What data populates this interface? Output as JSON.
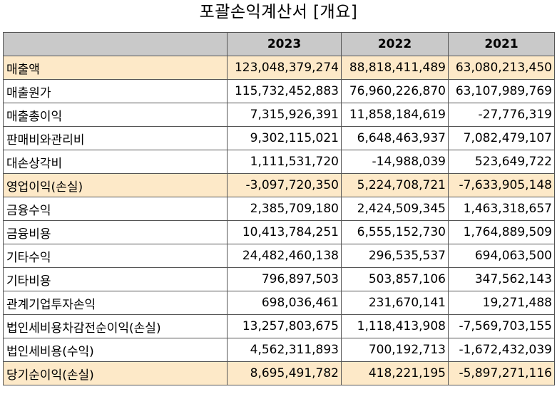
{
  "title": "포괄손익계산서 [개요]",
  "header": {
    "label": "",
    "years": [
      "2023",
      "2022",
      "2021"
    ]
  },
  "rows": [
    {
      "label": "매출액",
      "values": [
        "123,048,379,274",
        "88,818,411,489",
        "63,080,213,450"
      ],
      "highlight": true
    },
    {
      "label": "매출원가",
      "values": [
        "115,732,452,883",
        "76,960,226,870",
        "63,107,989,769"
      ],
      "highlight": false
    },
    {
      "label": "매출총이익",
      "values": [
        "7,315,926,391",
        "11,858,184,619",
        "-27,776,319"
      ],
      "highlight": false
    },
    {
      "label": "판매비와관리비",
      "values": [
        "9,302,115,021",
        "6,648,463,937",
        "7,082,479,107"
      ],
      "highlight": false
    },
    {
      "label": "대손상각비",
      "values": [
        "1,111,531,720",
        "-14,988,039",
        "523,649,722"
      ],
      "highlight": false
    },
    {
      "label": "영업이익(손실)",
      "values": [
        "-3,097,720,350",
        "5,224,708,721",
        "-7,633,905,148"
      ],
      "highlight": true
    },
    {
      "label": "금융수익",
      "values": [
        "2,385,709,180",
        "2,424,509,345",
        "1,463,318,657"
      ],
      "highlight": false
    },
    {
      "label": "금융비용",
      "values": [
        "10,413,784,251",
        "6,555,152,730",
        "1,764,889,509"
      ],
      "highlight": false
    },
    {
      "label": "기타수익",
      "values": [
        "24,482,460,138",
        "296,535,537",
        "694,063,500"
      ],
      "highlight": false
    },
    {
      "label": "기타비용",
      "values": [
        "796,897,503",
        "503,857,106",
        "347,562,143"
      ],
      "highlight": false
    },
    {
      "label": "관계기업투자손익",
      "values": [
        "698,036,461",
        "231,670,141",
        "19,271,488"
      ],
      "highlight": false
    },
    {
      "label": "법인세비용차감전순이익(손실)",
      "values": [
        "13,257,803,675",
        "1,118,413,908",
        "-7,569,703,155"
      ],
      "highlight": false
    },
    {
      "label": "법인세비용(수익)",
      "values": [
        "4,562,311,893",
        "700,192,713",
        "-1,672,432,039"
      ],
      "highlight": false
    },
    {
      "label": "당기순이익(손실)",
      "values": [
        "8,695,491,782",
        "418,221,195",
        "-5,897,271,116"
      ],
      "highlight": true
    }
  ],
  "colors": {
    "header_bg": "#c9c9c9",
    "highlight_bg": "#fde9c8",
    "border": "#555555"
  }
}
